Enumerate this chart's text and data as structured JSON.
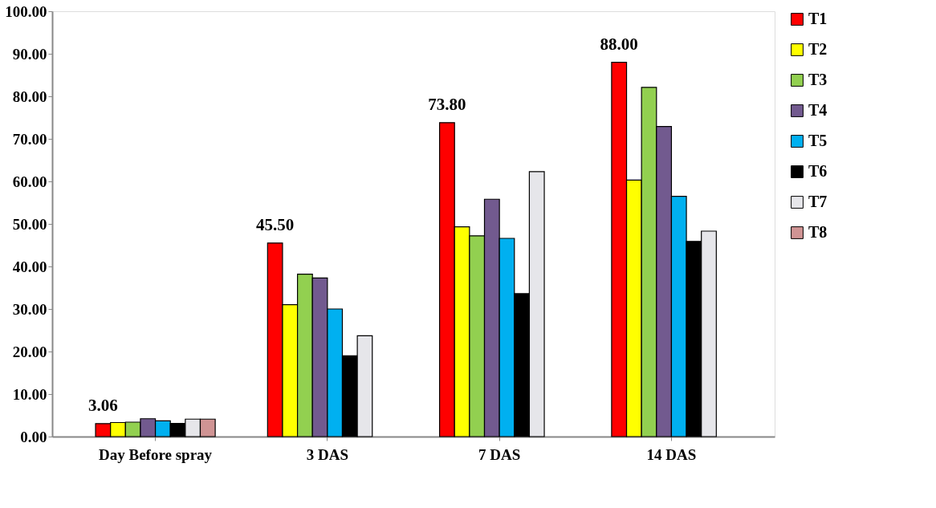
{
  "chart_data": {
    "type": "bar",
    "categories": [
      "Day Before spray",
      "3 DAS",
      "7 DAS",
      "14 DAS"
    ],
    "series": [
      {
        "name": "T1",
        "color": "#ff0000",
        "values": [
          3.06,
          45.5,
          73.8,
          88.0
        ],
        "value_labels": [
          "3.06",
          "45.50",
          "73.80",
          "88.00"
        ]
      },
      {
        "name": "T2",
        "color": "#ffff00",
        "values": [
          3.3,
          31.0,
          49.3,
          60.3
        ]
      },
      {
        "name": "T3",
        "color": "#92d050",
        "values": [
          3.4,
          38.2,
          47.2,
          82.1
        ]
      },
      {
        "name": "T4",
        "color": "#725a8f",
        "values": [
          4.2,
          37.3,
          55.8,
          72.9
        ]
      },
      {
        "name": "T5",
        "color": "#00b0f0",
        "values": [
          3.7,
          30.0,
          46.6,
          56.5
        ]
      },
      {
        "name": "T6",
        "color": "#000000",
        "values": [
          3.1,
          19.0,
          33.6,
          45.9
        ]
      },
      {
        "name": "T7",
        "color": "#e6e6ea",
        "values": [
          4.1,
          23.7,
          62.3,
          48.3
        ]
      },
      {
        "name": "T8",
        "color": "#d09494",
        "values": [
          4.1,
          null,
          null,
          null
        ]
      }
    ],
    "ylim": [
      0,
      100
    ],
    "yticks": [
      {
        "value": 0,
        "label": "0.00"
      },
      {
        "value": 10,
        "label": "10.00"
      },
      {
        "value": 20,
        "label": "20.00"
      },
      {
        "value": 30,
        "label": "30.00"
      },
      {
        "value": 40,
        "label": "40.00"
      },
      {
        "value": 50,
        "label": "50.00"
      },
      {
        "value": 60,
        "label": "60.00"
      },
      {
        "value": 70,
        "label": "70.00"
      },
      {
        "value": 80,
        "label": "80.00"
      },
      {
        "value": 90,
        "label": "90.00"
      },
      {
        "value": 100,
        "label": "100.00"
      }
    ],
    "grid": false,
    "legend": "right"
  }
}
